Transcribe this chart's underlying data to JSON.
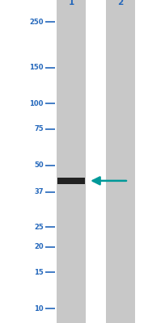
{
  "bg_color": "#ffffff",
  "lane_color": "#c8c8c8",
  "band_color": "#222222",
  "arrow_color": "#009999",
  "marker_labels": [
    "250",
    "150",
    "100",
    "75",
    "50",
    "37",
    "25",
    "20",
    "15",
    "10"
  ],
  "marker_kda": [
    250,
    150,
    100,
    75,
    50,
    37,
    25,
    20,
    15,
    10
  ],
  "lane1_label": "1",
  "lane2_label": "2",
  "band_kda": 42,
  "label_color": "#2266bb",
  "tick_color": "#2266bb",
  "label_fontsize": 6.0,
  "lane_label_fontsize": 7.5
}
